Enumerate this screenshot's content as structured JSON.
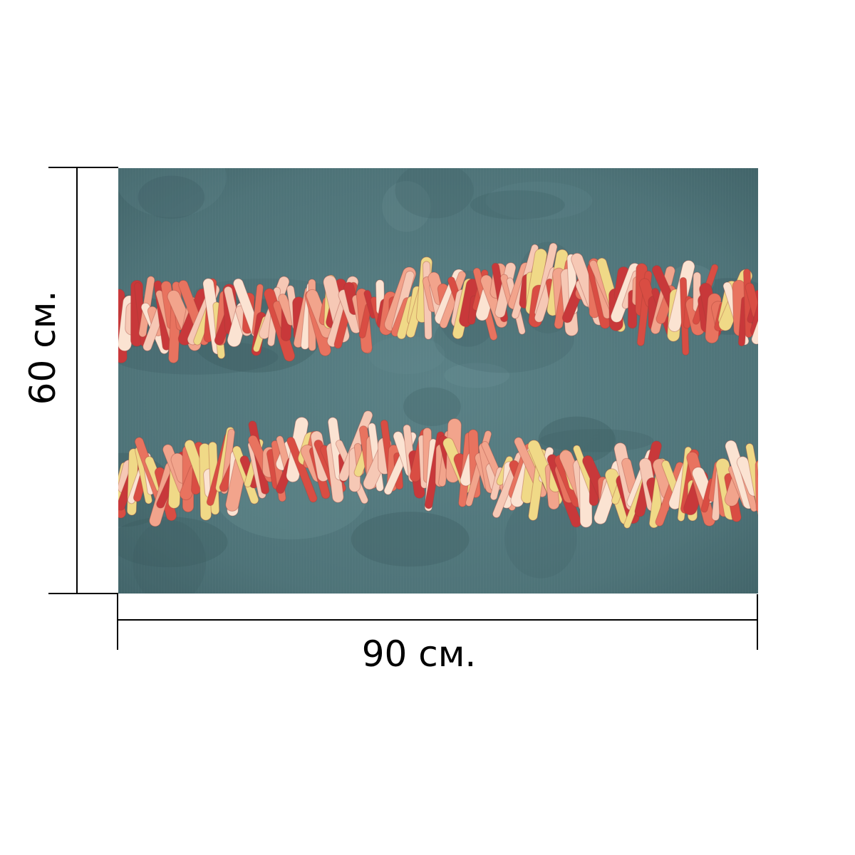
{
  "dimensions": {
    "width_label": "90 см.",
    "height_label": "60 см."
  },
  "photo": {
    "subject": "coral-branch-bead-necklaces",
    "background_color": "#4f7479",
    "coral_colors": [
      "#e8735f",
      "#f2a48c",
      "#f6c8b5",
      "#fbe3d2",
      "#d94d43",
      "#f0d987",
      "#c8383a"
    ]
  },
  "line_color": "#000000"
}
